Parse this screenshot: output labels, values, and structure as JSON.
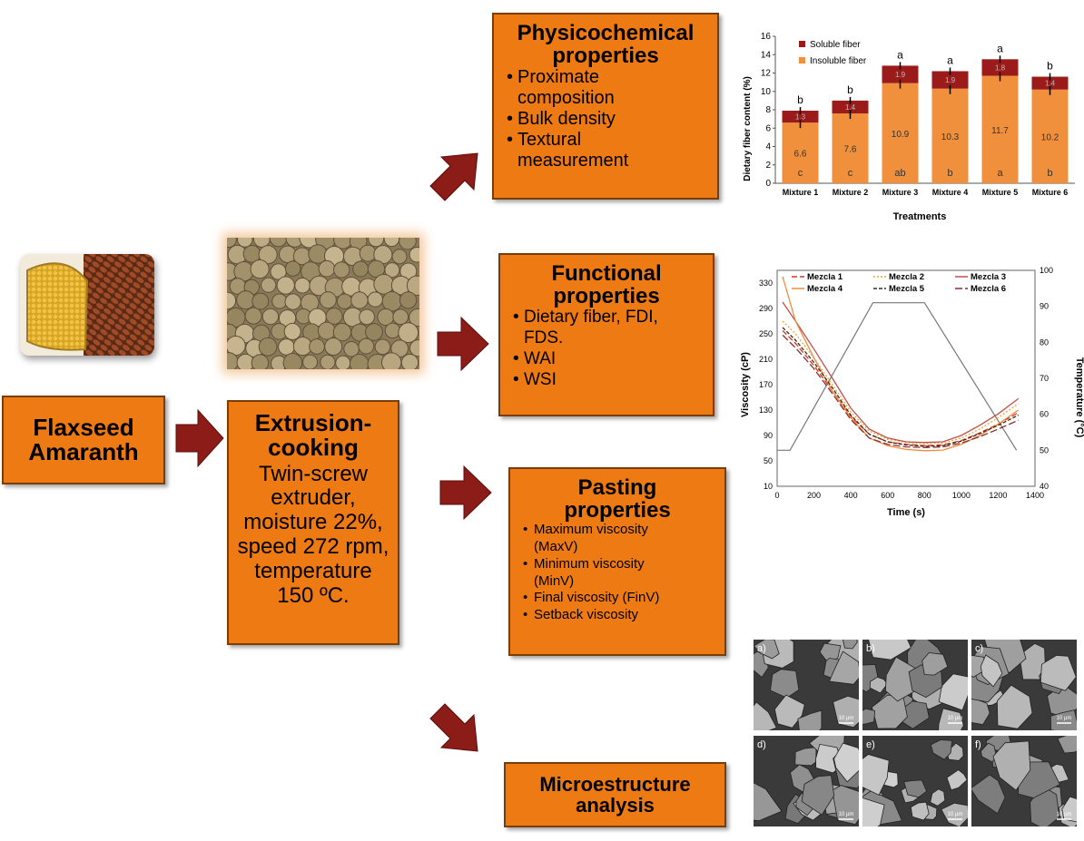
{
  "boxes": {
    "input": {
      "line1": "Flaxseed",
      "line2": "Amaranth"
    },
    "extrusion": {
      "title_line1": "Extrusion-",
      "title_line2": "cooking",
      "desc": [
        "Twin-screw",
        "extruder,",
        "moisture 22%,",
        "speed 272 rpm,",
        "temperature",
        "150 ºC."
      ]
    },
    "physico": {
      "title_line1": "Physicochemical",
      "title_line2": "properties",
      "items": [
        [
          "Proximate",
          "composition"
        ],
        [
          "Bulk density"
        ],
        [
          "Textural",
          "measurement"
        ]
      ]
    },
    "functional": {
      "title_line1": "Functional",
      "title_line2": "properties",
      "items": [
        [
          "Dietary fiber, FDI,",
          "FDS."
        ],
        [
          "WAI"
        ],
        [
          "WSI"
        ]
      ]
    },
    "pasting": {
      "title_line1": "Pasting",
      "title_line2": "properties",
      "items": [
        [
          "Maximum viscosity",
          "(MaxV)"
        ],
        [
          "Minimum viscosity",
          "(MinV)"
        ],
        [
          "Final viscosity (FinV)"
        ],
        [
          "Setback viscosity"
        ]
      ]
    },
    "micro": {
      "title_line1": "Microestructure",
      "title_line2": "analysis"
    }
  },
  "colors": {
    "box": "#ee7a14",
    "arrow": "#8b1c17",
    "soluble": "#9b1b1b",
    "insoluble": "#f0903c"
  },
  "chart_data": [
    {
      "type": "bar",
      "stacked": true,
      "categories": [
        "Mixture 1",
        "Mixture 2",
        "Mixture 3",
        "Mixture 4",
        "Mixture 5",
        "Mixture 6"
      ],
      "series": [
        {
          "name": "Insoluble fiber",
          "values": [
            6.6,
            7.6,
            10.9,
            10.3,
            11.7,
            10.2
          ],
          "labels": [
            "6.6",
            "7.6",
            "10.9",
            "10.3",
            "11.7",
            "10.2"
          ],
          "letters": [
            "c",
            "c",
            "ab",
            "b",
            "a",
            "b"
          ]
        },
        {
          "name": "Soluble fiber",
          "values": [
            1.3,
            1.4,
            1.9,
            1.9,
            1.8,
            1.4
          ],
          "labels": [
            "1.3",
            "1.4",
            "1.9",
            "1.9",
            "1.8",
            "1.4"
          ]
        }
      ],
      "top_letters": [
        "b",
        "b",
        "a",
        "a",
        "a",
        "b"
      ],
      "xlabel": "Treatments",
      "ylabel": "Dietary fiber content (%)",
      "ylim": [
        0,
        16
      ],
      "yticks": [
        0,
        2,
        4,
        6,
        8,
        10,
        12,
        14,
        16
      ],
      "legend": "top-left"
    },
    {
      "type": "line",
      "xlabel": "Time (s)",
      "ylabel": "Viscosity (cP)",
      "y2label": "Temperature (°C)",
      "xlim": [
        0,
        1400
      ],
      "ylim": [
        10,
        350
      ],
      "y2lim": [
        40,
        100
      ],
      "xticks": [
        0,
        200,
        400,
        600,
        800,
        1000,
        1200,
        1400
      ],
      "yticks": [
        10,
        50,
        90,
        130,
        170,
        210,
        250,
        290,
        330
      ],
      "y2ticks": [
        40,
        50,
        60,
        70,
        80,
        90,
        100
      ],
      "series": [
        {
          "name": "Mezcla 1",
          "color": "#e0301e",
          "dash": "6,3",
          "points": [
            [
              30,
              255
            ],
            [
              100,
              235
            ],
            [
              200,
              200
            ],
            [
              300,
              160
            ],
            [
              400,
              120
            ],
            [
              500,
              92
            ],
            [
              600,
              80
            ],
            [
              700,
              76
            ],
            [
              800,
              74
            ],
            [
              900,
              75
            ],
            [
              1000,
              82
            ],
            [
              1100,
              94
            ],
            [
              1200,
              108
            ],
            [
              1310,
              126
            ]
          ]
        },
        {
          "name": "Mezcla 2",
          "color": "#e8a832",
          "dash": "2,2",
          "points": [
            [
              30,
              270
            ],
            [
              100,
              250
            ],
            [
              200,
              212
            ],
            [
              300,
              170
            ],
            [
              400,
              127
            ],
            [
              500,
              97
            ],
            [
              600,
              84
            ],
            [
              700,
              79
            ],
            [
              800,
              77
            ],
            [
              900,
              78
            ],
            [
              1000,
              86
            ],
            [
              1100,
              100
            ],
            [
              1200,
              118
            ],
            [
              1310,
              140
            ]
          ]
        },
        {
          "name": "Mezcla 3",
          "color": "#c0504d",
          "dash": "",
          "points": [
            [
              30,
              300
            ],
            [
              100,
              270
            ],
            [
              200,
              226
            ],
            [
              300,
              180
            ],
            [
              400,
              133
            ],
            [
              500,
              100
            ],
            [
              600,
              86
            ],
            [
              700,
              80
            ],
            [
              800,
              79
            ],
            [
              900,
              80
            ],
            [
              1000,
              90
            ],
            [
              1100,
              106
            ],
            [
              1200,
              124
            ],
            [
              1310,
              148
            ]
          ]
        },
        {
          "name": "Mezcla 4",
          "color": "#f08a3c",
          "dash": "",
          "points": [
            [
              30,
              340
            ],
            [
              100,
              270
            ],
            [
              200,
              212
            ],
            [
              300,
              160
            ],
            [
              400,
              118
            ],
            [
              500,
              86
            ],
            [
              600,
              74
            ],
            [
              700,
              68
            ],
            [
              800,
              66
            ],
            [
              900,
              67
            ],
            [
              1000,
              76
            ],
            [
              1100,
              90
            ],
            [
              1200,
              108
            ],
            [
              1310,
              130
            ]
          ]
        },
        {
          "name": "Mezcla 5",
          "color": "#3a2a20",
          "dash": "4,2",
          "points": [
            [
              30,
              260
            ],
            [
              100,
              240
            ],
            [
              200,
              205
            ],
            [
              300,
              165
            ],
            [
              400,
              122
            ],
            [
              500,
              92
            ],
            [
              600,
              80
            ],
            [
              700,
              75
            ],
            [
              800,
              73
            ],
            [
              900,
              74
            ],
            [
              1000,
              81
            ],
            [
              1100,
              93
            ],
            [
              1200,
              106
            ],
            [
              1310,
              122
            ]
          ]
        },
        {
          "name": "Mezcla 6",
          "color": "#8b3030",
          "dash": "8,3",
          "points": [
            [
              30,
              248
            ],
            [
              100,
              228
            ],
            [
              200,
              195
            ],
            [
              300,
              156
            ],
            [
              400,
              115
            ],
            [
              500,
              86
            ],
            [
              600,
              76
            ],
            [
              700,
              72
            ],
            [
              800,
              71
            ],
            [
              900,
              72
            ],
            [
              1000,
              78
            ],
            [
              1100,
              88
            ],
            [
              1200,
              100
            ],
            [
              1310,
              114
            ]
          ]
        }
      ],
      "temperature": {
        "points": [
          [
            0,
            50
          ],
          [
            70,
            50
          ],
          [
            520,
            91
          ],
          [
            800,
            91
          ],
          [
            1300,
            50
          ]
        ]
      },
      "legend": "top"
    }
  ],
  "micrographs": {
    "labels": [
      "a)",
      "b)",
      "c)",
      "d)",
      "e)",
      "f)"
    ],
    "scale": "10 µm"
  }
}
